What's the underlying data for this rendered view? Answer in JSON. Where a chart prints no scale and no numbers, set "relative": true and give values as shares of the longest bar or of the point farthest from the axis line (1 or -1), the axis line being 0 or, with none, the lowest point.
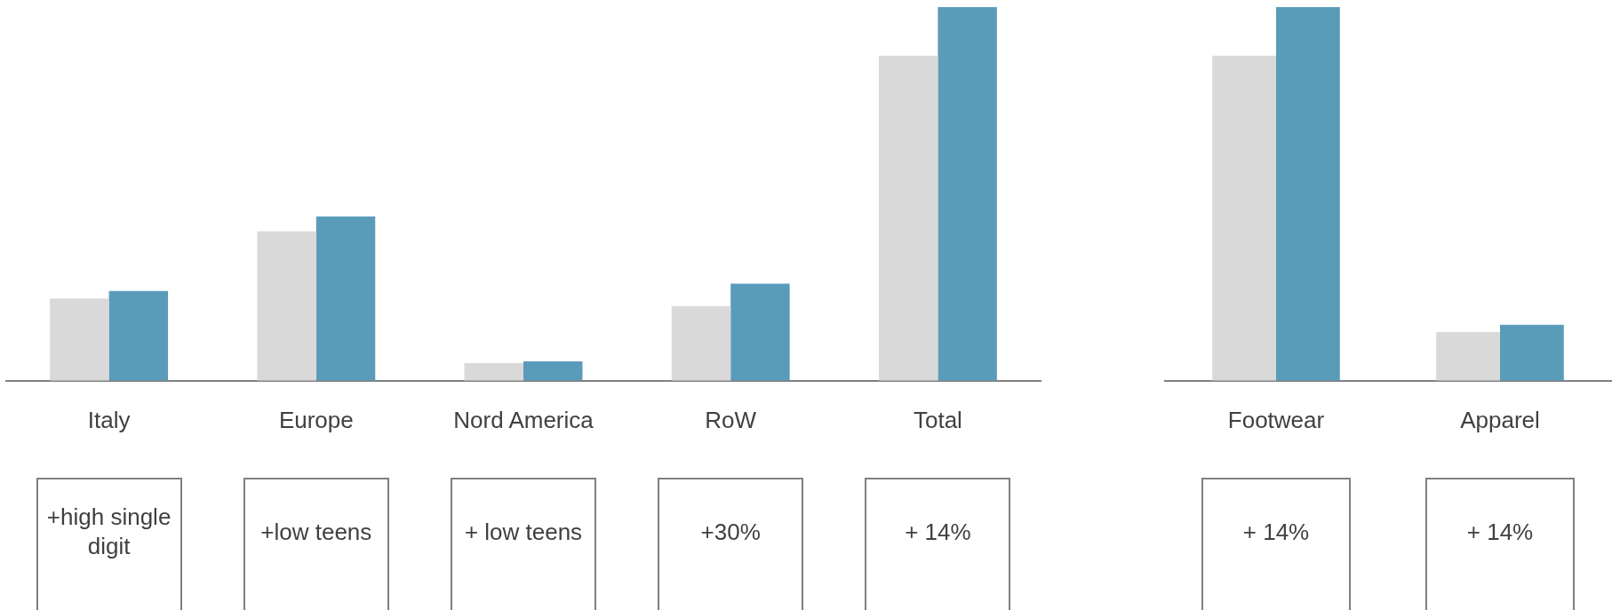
{
  "chart_data": [
    {
      "type": "bar",
      "relative": true,
      "categories": [
        "Italy",
        "Europe",
        "Nord America",
        "RoW",
        "Total"
      ],
      "series": [
        {
          "color": "#d9d9d9",
          "values": [
            0.22,
            0.4,
            0.047,
            0.2,
            0.87
          ]
        },
        {
          "color": "#5b9bba",
          "values": [
            0.24,
            0.44,
            0.052,
            0.26,
            1
          ]
        }
      ],
      "annotations": [
        "+high single digit",
        "+low teens",
        "+ low teens",
        "+30%",
        "+ 14%"
      ]
    },
    {
      "type": "bar",
      "relative": true,
      "categories": [
        "Footwear",
        "Apparel"
      ],
      "series": [
        {
          "color": "#d9d9d9",
          "values": [
            0.87,
            0.13
          ]
        },
        {
          "color": "#5b9bba",
          "values": [
            1,
            0.15
          ]
        }
      ],
      "annotations": [
        "+ 14%",
        "+ 14%"
      ]
    }
  ]
}
